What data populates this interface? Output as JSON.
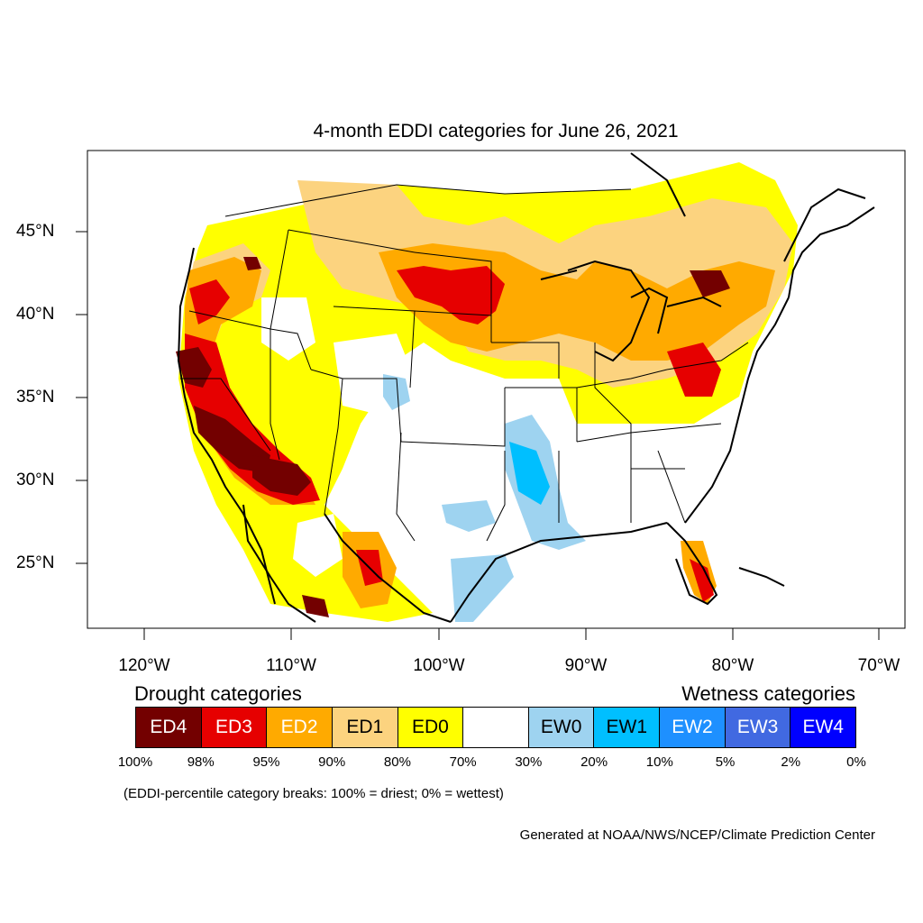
{
  "title": "4-month EDDI categories for June 26, 2021",
  "map": {
    "lat_labels": [
      "45°N",
      "40°N",
      "35°N",
      "30°N",
      "25°N"
    ],
    "lon_labels": [
      "120°W",
      "110°W",
      "100°W",
      "90°W",
      "80°W",
      "70°W"
    ]
  },
  "legend": {
    "drought_heading": "Drought categories",
    "wetness_heading": "Wetness categories",
    "categories": [
      {
        "label": "ED4",
        "color": "#730000",
        "text_color": "#ffffff"
      },
      {
        "label": "ED3",
        "color": "#e60000",
        "text_color": "#ffffff"
      },
      {
        "label": "ED2",
        "color": "#ffaa00",
        "text_color": "#ffffff"
      },
      {
        "label": "ED1",
        "color": "#fcd37f",
        "text_color": "#000000"
      },
      {
        "label": "ED0",
        "color": "#ffff00",
        "text_color": "#000000"
      },
      {
        "label": "",
        "color": "#ffffff",
        "text_color": "#000000"
      },
      {
        "label": "EW0",
        "color": "#9ed3f0",
        "text_color": "#000000"
      },
      {
        "label": "EW1",
        "color": "#00bfff",
        "text_color": "#000000"
      },
      {
        "label": "EW2",
        "color": "#1e90ff",
        "text_color": "#ffffff"
      },
      {
        "label": "EW3",
        "color": "#4169e1",
        "text_color": "#ffffff"
      },
      {
        "label": "EW4",
        "color": "#0000ff",
        "text_color": "#ffffff"
      }
    ],
    "breaks": [
      "100%",
      "98%",
      "95%",
      "90%",
      "80%",
      "70%",
      "30%",
      "20%",
      "10%",
      "5%",
      "2%",
      "0%"
    ]
  },
  "note": "(EDDI-percentile category breaks: 100% = driest; 0% = wettest)",
  "credit": "Generated at NOAA/NWS/NCEP/Climate Prediction Center"
}
